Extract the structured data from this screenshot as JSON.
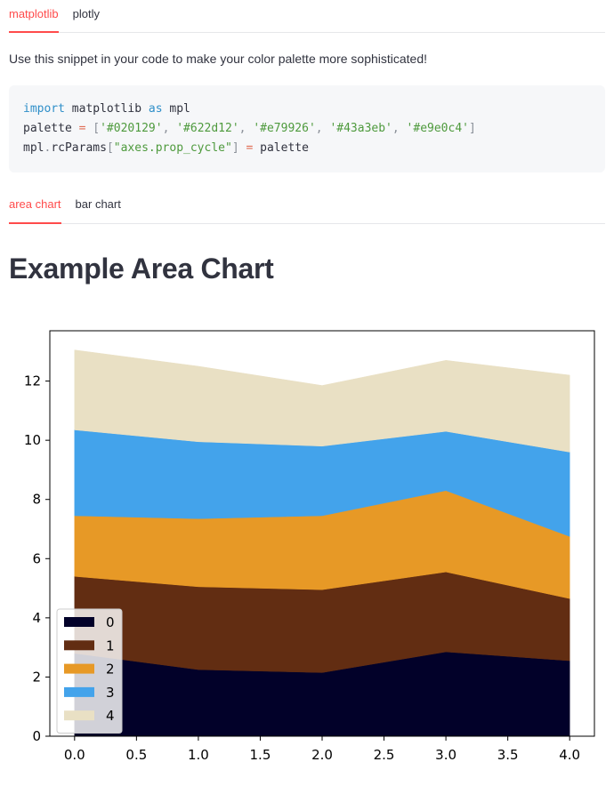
{
  "tabs_top": [
    {
      "label": "matplotlib",
      "active": true
    },
    {
      "label": "plotly",
      "active": false
    }
  ],
  "description": "Use this snippet in your code to make your color palette more sophisticated!",
  "code": {
    "line1": {
      "kw1": "import",
      "mod": " matplotlib ",
      "kw2": "as",
      "alias": " mpl"
    },
    "line2": {
      "name": "palette",
      "op": " = ",
      "open": "[",
      "c1": "'#020129'",
      "c2": "'#622d12'",
      "c3": "'#e79926'",
      "c4": "'#43a3eb'",
      "c5": "'#e9e0c4'",
      "sep": ", ",
      "close": "]"
    },
    "line3": {
      "obj": "mpl",
      "dot": ".",
      "attr": "rcParams",
      "bopen": "[",
      "key": "\"axes.prop_cycle\"",
      "bclose": "]",
      "op": " = ",
      "value": "palette"
    }
  },
  "tabs_chart": [
    {
      "label": "area chart",
      "active": true
    },
    {
      "label": "bar chart",
      "active": false
    }
  ],
  "chart_title": "Example Area Chart",
  "chart_data": {
    "type": "area",
    "stacked": true,
    "x": [
      0,
      1,
      2,
      3,
      4
    ],
    "xlim": [
      -0.2,
      4.2
    ],
    "ylim": [
      0,
      13.7
    ],
    "xticks": [
      0.0,
      0.5,
      1.0,
      1.5,
      2.0,
      2.5,
      3.0,
      3.5,
      4.0
    ],
    "xtick_labels": [
      "0.0",
      "0.5",
      "1.0",
      "1.5",
      "2.0",
      "2.5",
      "3.0",
      "3.5",
      "4.0"
    ],
    "yticks": [
      0,
      2,
      4,
      6,
      8,
      10,
      12
    ],
    "ytick_labels": [
      "0",
      "2",
      "4",
      "6",
      "8",
      "10",
      "12"
    ],
    "legend_position": "lower-left",
    "series": [
      {
        "name": "0",
        "color": "#020129",
        "values": [
          2.8,
          2.25,
          2.15,
          2.85,
          2.55
        ]
      },
      {
        "name": "1",
        "color": "#622d12",
        "values": [
          2.6,
          2.8,
          2.8,
          2.7,
          2.1
        ]
      },
      {
        "name": "2",
        "color": "#e79926",
        "values": [
          2.05,
          2.3,
          2.5,
          2.75,
          2.1
        ]
      },
      {
        "name": "3",
        "color": "#43a3eb",
        "values": [
          2.9,
          2.6,
          2.35,
          2.0,
          2.85
        ]
      },
      {
        "name": "4",
        "color": "#e9e0c4",
        "values": [
          2.7,
          2.55,
          2.05,
          2.4,
          2.6
        ]
      }
    ]
  }
}
